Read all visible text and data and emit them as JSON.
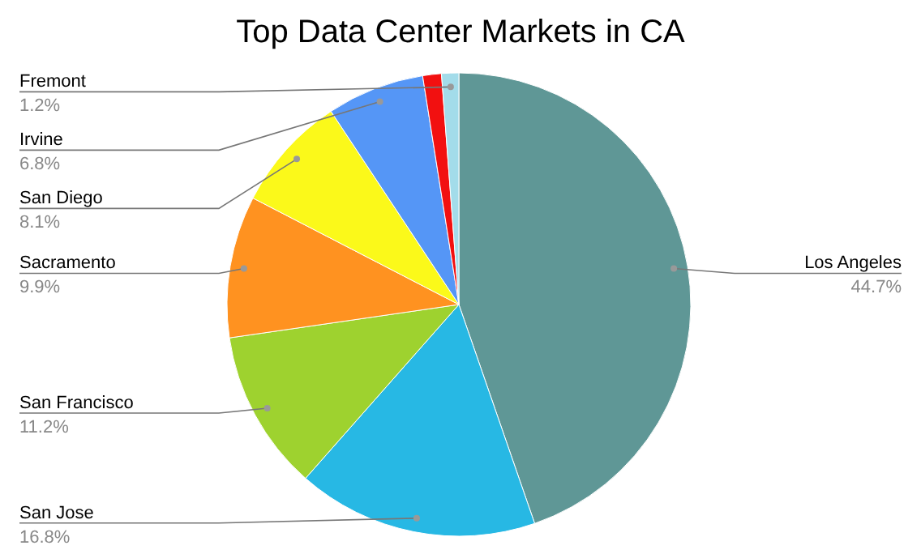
{
  "chart_data": {
    "type": "pie",
    "title": "Top Data Center Markets in CA",
    "categories": [
      "Los Angeles",
      "San Jose",
      "San Francisco",
      "Sacramento",
      "San Diego",
      "Irvine",
      null,
      "Fremont"
    ],
    "values": [
      44.7,
      16.8,
      11.2,
      9.9,
      8.1,
      6.8,
      1.3,
      1.2
    ],
    "value_labels": [
      "44.7%",
      "16.8%",
      "11.2%",
      "9.9%",
      "8.1%",
      "6.8%",
      null,
      "1.2%"
    ],
    "colors": [
      "#5f9796",
      "#27b8e4",
      "#9ed22f",
      "#ff9220",
      "#fbf91a",
      "#5596f6",
      "#f21010",
      "#a3dcea"
    ]
  }
}
